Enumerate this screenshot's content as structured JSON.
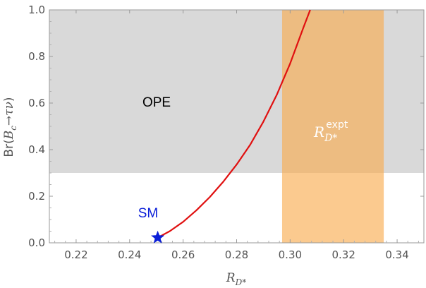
{
  "chart_data": {
    "type": "line",
    "xlabel": {
      "main": "R",
      "sub": "D*"
    },
    "ylabel": {
      "main": "Br",
      "b": "B",
      "c": "c",
      "arrow": "→",
      "tau": "τ",
      "nu": "ν"
    },
    "xlim": [
      0.21,
      0.35
    ],
    "ylim": [
      0.0,
      1.0
    ],
    "x_ticks": [
      0.22,
      0.24,
      0.26,
      0.28,
      0.3,
      0.32,
      0.34
    ],
    "x_tick_labels": [
      "0.22",
      "0.24",
      "0.26",
      "0.28",
      "0.30",
      "0.32",
      "0.34"
    ],
    "y_ticks": [
      0.0,
      0.2,
      0.4,
      0.6,
      0.8,
      1.0
    ],
    "y_tick_labels": [
      "0.0",
      "0.2",
      "0.4",
      "0.6",
      "0.8",
      "1.0"
    ],
    "regions": [
      {
        "name": "OPE",
        "label": "OPE",
        "x_range": [
          0.21,
          0.35
        ],
        "y_range": [
          0.3,
          1.0
        ],
        "color": "#d9d9d9",
        "label_color": "#000000"
      },
      {
        "name": "R_D*^expt",
        "label": {
          "main": "R",
          "sup": "expt",
          "sub": "D*"
        },
        "x_range": [
          0.297,
          0.335
        ],
        "y_range": [
          0.0,
          1.0
        ],
        "color": "#f8a94a",
        "label_color": "#ffffff"
      }
    ],
    "series": [
      {
        "color": "#e01010",
        "points": [
          [
            0.2505,
            0.022
          ],
          [
            0.255,
            0.05
          ],
          [
            0.26,
            0.09
          ],
          [
            0.265,
            0.14
          ],
          [
            0.27,
            0.197
          ],
          [
            0.275,
            0.262
          ],
          [
            0.28,
            0.336
          ],
          [
            0.285,
            0.42
          ],
          [
            0.29,
            0.52
          ],
          [
            0.295,
            0.635
          ],
          [
            0.3,
            0.77
          ],
          [
            0.305,
            0.925
          ],
          [
            0.3075,
            1.0
          ]
        ]
      }
    ],
    "markers": [
      {
        "name": "SM",
        "label": "SM",
        "x": 0.2505,
        "y": 0.022,
        "color": "#0a1ed8",
        "shape": "star"
      }
    ],
    "grid": false
  }
}
